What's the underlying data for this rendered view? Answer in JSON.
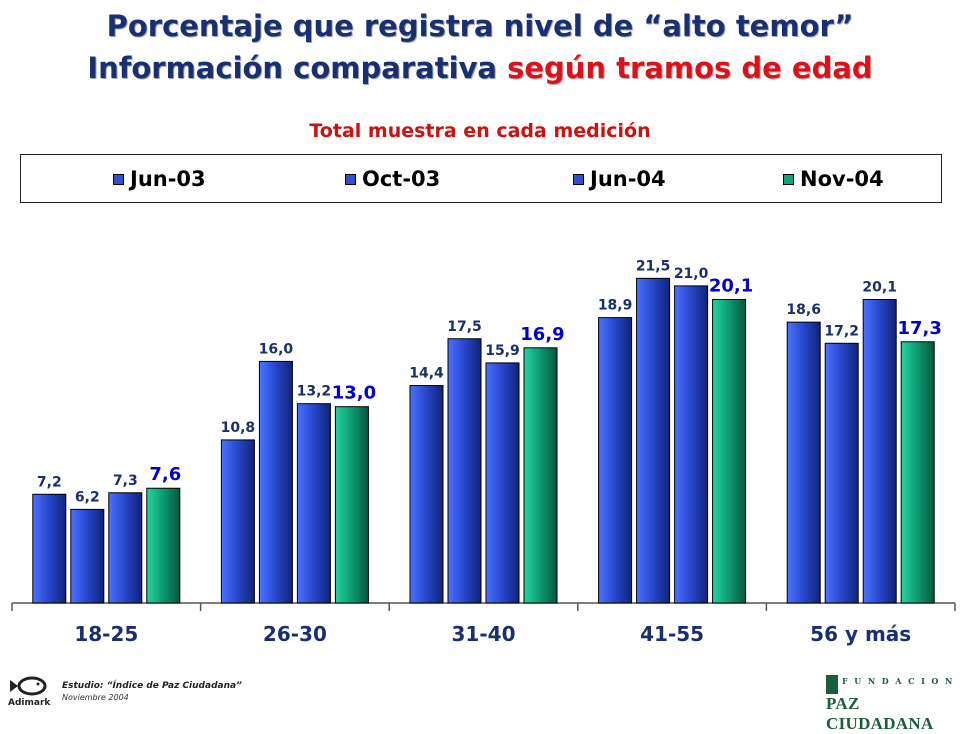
{
  "header": {
    "title_line1": "Porcentaje que registra nivel de “alto temor”",
    "title_line2_a": "Información comparativa ",
    "title_line2_b": "según tramos de edad",
    "subtitle": "Total muestra en cada medición"
  },
  "chart_data": {
    "type": "bar",
    "categories": [
      "18-25",
      "26-30",
      "31-40",
      "41-55",
      "56 y más"
    ],
    "series": [
      {
        "name": "Jun-03",
        "values": [
          7.2,
          10.8,
          14.4,
          18.9,
          18.6
        ],
        "labels": [
          "7,2",
          "10,8",
          "14,4",
          "18,9",
          "18,6"
        ]
      },
      {
        "name": "Oct-03",
        "values": [
          6.2,
          16.0,
          17.5,
          21.5,
          17.2
        ],
        "labels": [
          "6,2",
          "16,0",
          "17,5",
          "21,5",
          "17,2"
        ]
      },
      {
        "name": "Jun-04",
        "values": [
          7.3,
          13.2,
          15.9,
          21.0,
          20.1
        ],
        "labels": [
          "7,3",
          "13,2",
          "15,9",
          "21,0",
          "20,1"
        ]
      },
      {
        "name": "Nov-04",
        "values": [
          7.6,
          13.0,
          16.9,
          20.1,
          17.3
        ],
        "labels": [
          "7,6",
          "13,0",
          "16,9",
          "20,1",
          "17,3"
        ]
      }
    ],
    "legend_position": "top",
    "grid": false
  },
  "colors": {
    "blue": "#2d4fd0",
    "green": "#11a27a",
    "label_dark": "#1a2f6e",
    "label_blue": "#0000cc"
  },
  "footer": {
    "study": "Estudio: “Índice de Paz Ciudadana”",
    "date": "Noviembre 2004",
    "company": "Adimark",
    "foundation_top": "FUNDACION",
    "foundation_name": "PAZ CIUDADANA"
  }
}
